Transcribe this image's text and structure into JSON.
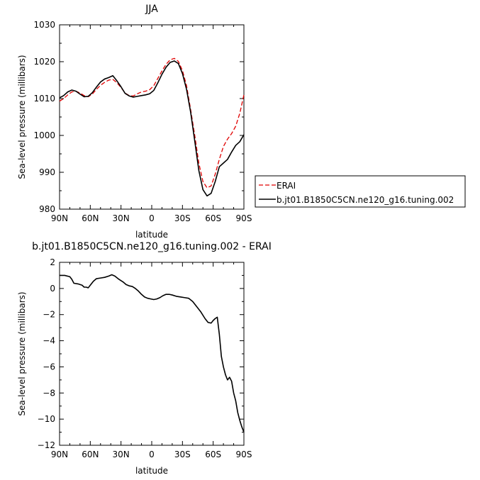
{
  "chart_data": [
    {
      "type": "line",
      "title": "JJA",
      "xlabel": "latitude",
      "ylabel": "Sea-level pressure (millibars)",
      "xlim": [
        90,
        -90
      ],
      "ylim": [
        980,
        1030
      ],
      "x_ticks": [
        {
          "value": 90,
          "label": "90N"
        },
        {
          "value": 60,
          "label": "60N"
        },
        {
          "value": 30,
          "label": "30N"
        },
        {
          "value": 0,
          "label": "0"
        },
        {
          "value": -30,
          "label": "30S"
        },
        {
          "value": -60,
          "label": "60S"
        },
        {
          "value": -90,
          "label": "90S"
        }
      ],
      "y_ticks": [
        980,
        990,
        1000,
        1010,
        1020,
        1030
      ],
      "legend_position": "right",
      "series": [
        {
          "name": "ERAI",
          "color": "#e00000",
          "dash": true,
          "x": [
            90,
            86,
            82,
            78,
            74,
            70,
            66,
            62,
            58,
            54,
            50,
            46,
            42,
            38,
            34,
            30,
            26,
            22,
            18,
            14,
            10,
            6,
            2,
            -2,
            -6,
            -10,
            -14,
            -18,
            -22,
            -26,
            -30,
            -34,
            -38,
            -42,
            -46,
            -50,
            -54,
            -58,
            -62,
            -66,
            -70,
            -74,
            -78,
            -82,
            -86,
            -90
          ],
          "y": [
            1009.3,
            1010.0,
            1011.0,
            1011.8,
            1012.0,
            1011.5,
            1010.8,
            1010.5,
            1011.2,
            1012.5,
            1013.6,
            1014.4,
            1015.0,
            1015.2,
            1014.3,
            1013.0,
            1011.5,
            1010.8,
            1010.7,
            1011.3,
            1011.8,
            1012.0,
            1012.4,
            1013.5,
            1015.5,
            1017.5,
            1019.3,
            1020.5,
            1020.9,
            1020.1,
            1017.6,
            1013.5,
            1007.0,
            1000.0,
            992.5,
            987.5,
            985.8,
            986.3,
            989.5,
            993.5,
            997.0,
            999.0,
            1000.5,
            1002.5,
            1006.0,
            1011.0
          ]
        },
        {
          "name": "b.jt01.B1850C5CN.ne120_g16.tuning.002",
          "color": "#000000",
          "dash": false,
          "x": [
            90,
            86,
            82,
            78,
            74,
            70,
            66,
            62,
            58,
            54,
            50,
            46,
            42,
            38,
            34,
            30,
            26,
            22,
            18,
            14,
            10,
            6,
            2,
            -2,
            -6,
            -10,
            -14,
            -18,
            -22,
            -26,
            -30,
            -34,
            -38,
            -42,
            -46,
            -50,
            -54,
            -58,
            -62,
            -66,
            -70,
            -74,
            -78,
            -82,
            -86,
            -90
          ],
          "y": [
            1010.2,
            1010.8,
            1011.8,
            1012.3,
            1012.0,
            1011.2,
            1010.5,
            1010.6,
            1011.6,
            1013.1,
            1014.5,
            1015.3,
            1015.7,
            1016.2,
            1014.8,
            1013.2,
            1011.4,
            1010.7,
            1010.4,
            1010.6,
            1010.8,
            1011.0,
            1011.3,
            1012.2,
            1014.3,
            1016.6,
            1018.5,
            1019.8,
            1020.2,
            1019.5,
            1016.8,
            1012.5,
            1006.3,
            998.5,
            990.5,
            985.3,
            983.6,
            984.3,
            987.5,
            991.5,
            992.5,
            993.5,
            995.5,
            997.3,
            998.3,
            1000.2
          ]
        }
      ]
    },
    {
      "type": "line",
      "title": "b.jt01.B1850C5CN.ne120_g16.tuning.002 - ERAI",
      "xlabel": "latitude",
      "ylabel": "Sea-level pressure (millibars)",
      "xlim": [
        90,
        -90
      ],
      "ylim": [
        -12,
        2
      ],
      "x_ticks": [
        {
          "value": 90,
          "label": "90N"
        },
        {
          "value": 60,
          "label": "60N"
        },
        {
          "value": 30,
          "label": "30N"
        },
        {
          "value": 0,
          "label": "0"
        },
        {
          "value": -30,
          "label": "30S"
        },
        {
          "value": -60,
          "label": "60S"
        },
        {
          "value": -90,
          "label": "90S"
        }
      ],
      "y_ticks": [
        2,
        0,
        -2,
        -4,
        -6,
        -8,
        -10,
        -12
      ],
      "series": [
        {
          "color": "#000000",
          "dash": false,
          "x": [
            90,
            85,
            80,
            78,
            76,
            72,
            68,
            66,
            64,
            62,
            60,
            57,
            54,
            50,
            46,
            42,
            39,
            36,
            32,
            28,
            25,
            22,
            19,
            16,
            13,
            10,
            7,
            4,
            1,
            -2,
            -5,
            -8,
            -11,
            -14,
            -17,
            -20,
            -24,
            -28,
            -32,
            -36,
            -40,
            -44,
            -48,
            -52,
            -55,
            -58,
            -60,
            -62,
            -64,
            -66,
            -68,
            -70,
            -72,
            -74,
            -76,
            -78,
            -80,
            -82,
            -84,
            -86,
            -88,
            -90
          ],
          "y": [
            1.0,
            1.0,
            0.9,
            0.7,
            0.4,
            0.35,
            0.25,
            0.1,
            0.1,
            0.05,
            0.25,
            0.55,
            0.75,
            0.8,
            0.85,
            0.95,
            1.05,
            0.95,
            0.7,
            0.5,
            0.3,
            0.2,
            0.15,
            0.0,
            -0.2,
            -0.45,
            -0.65,
            -0.75,
            -0.8,
            -0.85,
            -0.8,
            -0.7,
            -0.55,
            -0.45,
            -0.45,
            -0.5,
            -0.6,
            -0.65,
            -0.7,
            -0.75,
            -1.0,
            -1.4,
            -1.8,
            -2.3,
            -2.6,
            -2.65,
            -2.45,
            -2.3,
            -2.2,
            -3.5,
            -5.2,
            -6.0,
            -6.6,
            -7.0,
            -6.8,
            -7.1,
            -8.0,
            -8.6,
            -9.5,
            -10.1,
            -10.6,
            -11.0
          ]
        }
      ]
    }
  ]
}
